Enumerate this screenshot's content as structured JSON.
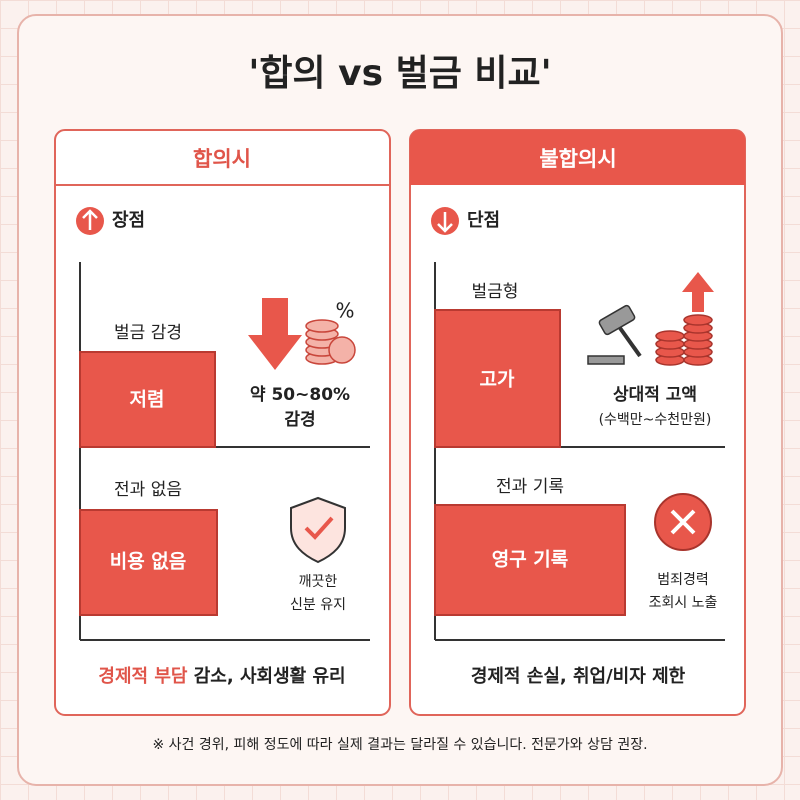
{
  "title": "'합의 vs 벌금 비교'",
  "left": {
    "header": "합의시",
    "badge": "장점",
    "item1": {
      "label": "벌금 감경",
      "box": "저렴",
      "note": [
        "약 50~80%",
        "감경"
      ]
    },
    "item2": {
      "label": "전과 없음",
      "box": "비용 없음",
      "note": [
        "깨끗한",
        "신분 유지"
      ]
    },
    "summary": {
      "highlight": "경제적 부담",
      "rest": " 감소, 사회생활 유리"
    }
  },
  "right": {
    "header": "불합의시",
    "badge": "단점",
    "item1": {
      "label": "벌금형",
      "box": "고가",
      "note": [
        "상대적 고액",
        "(수백만~수천만원)"
      ]
    },
    "item2": {
      "label": "전과 기록",
      "box": "영구 기록",
      "note": [
        "범죄경력",
        "조회시 노출"
      ]
    },
    "summary": "경제적 손실, 취업/비자 제한"
  },
  "footer": "※ 사건 경위, 피해 정도에 따라 실제 결과는 달라질 수 있습니다. 전문가와 상담 권장."
}
